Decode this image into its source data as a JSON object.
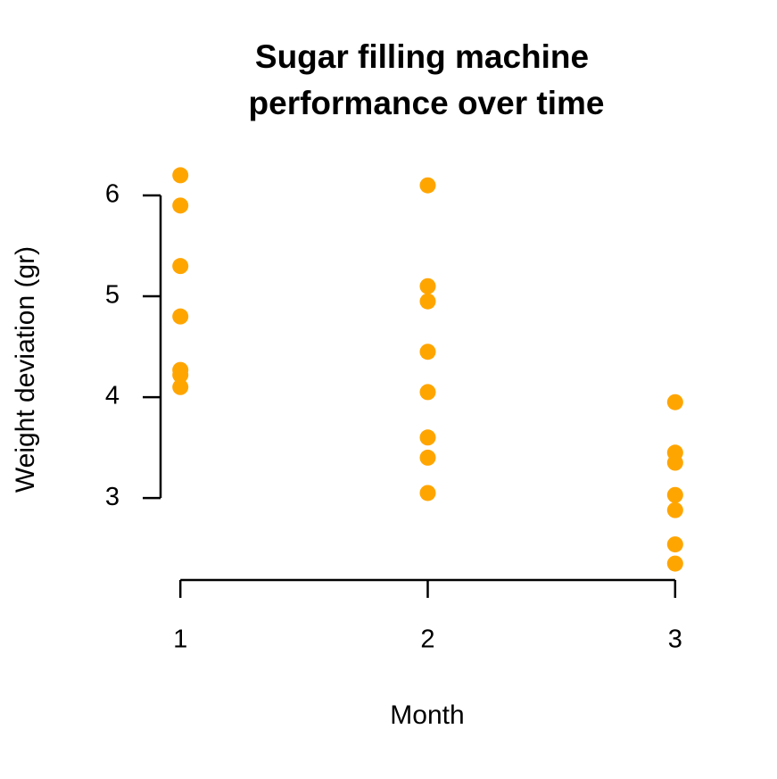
{
  "chart_data": {
    "type": "scatter",
    "title": [
      "Sugar filling machine",
      "performance over time"
    ],
    "x_label": "Month",
    "y_label": "Weight deviation (gr)",
    "color": "#FFA500",
    "x": [
      1,
      1,
      1,
      1,
      1,
      1,
      1,
      2,
      2,
      2,
      2,
      2,
      2,
      2,
      2,
      3,
      3,
      3,
      3,
      3,
      3,
      3
    ],
    "values": [
      6.2,
      5.9,
      5.3,
      4.8,
      4.27,
      4.22,
      4.1,
      6.1,
      5.1,
      4.95,
      4.45,
      4.05,
      3.6,
      3.4,
      3.05,
      3.95,
      3.45,
      3.35,
      3.03,
      2.88,
      2.54,
      2.35
    ],
    "xlim": [
      0.92,
      3.08
    ],
    "ylim": [
      2.196,
      6.354
    ],
    "xticks": [
      1,
      2,
      3
    ],
    "yticks": [
      3,
      4,
      5,
      6
    ]
  }
}
